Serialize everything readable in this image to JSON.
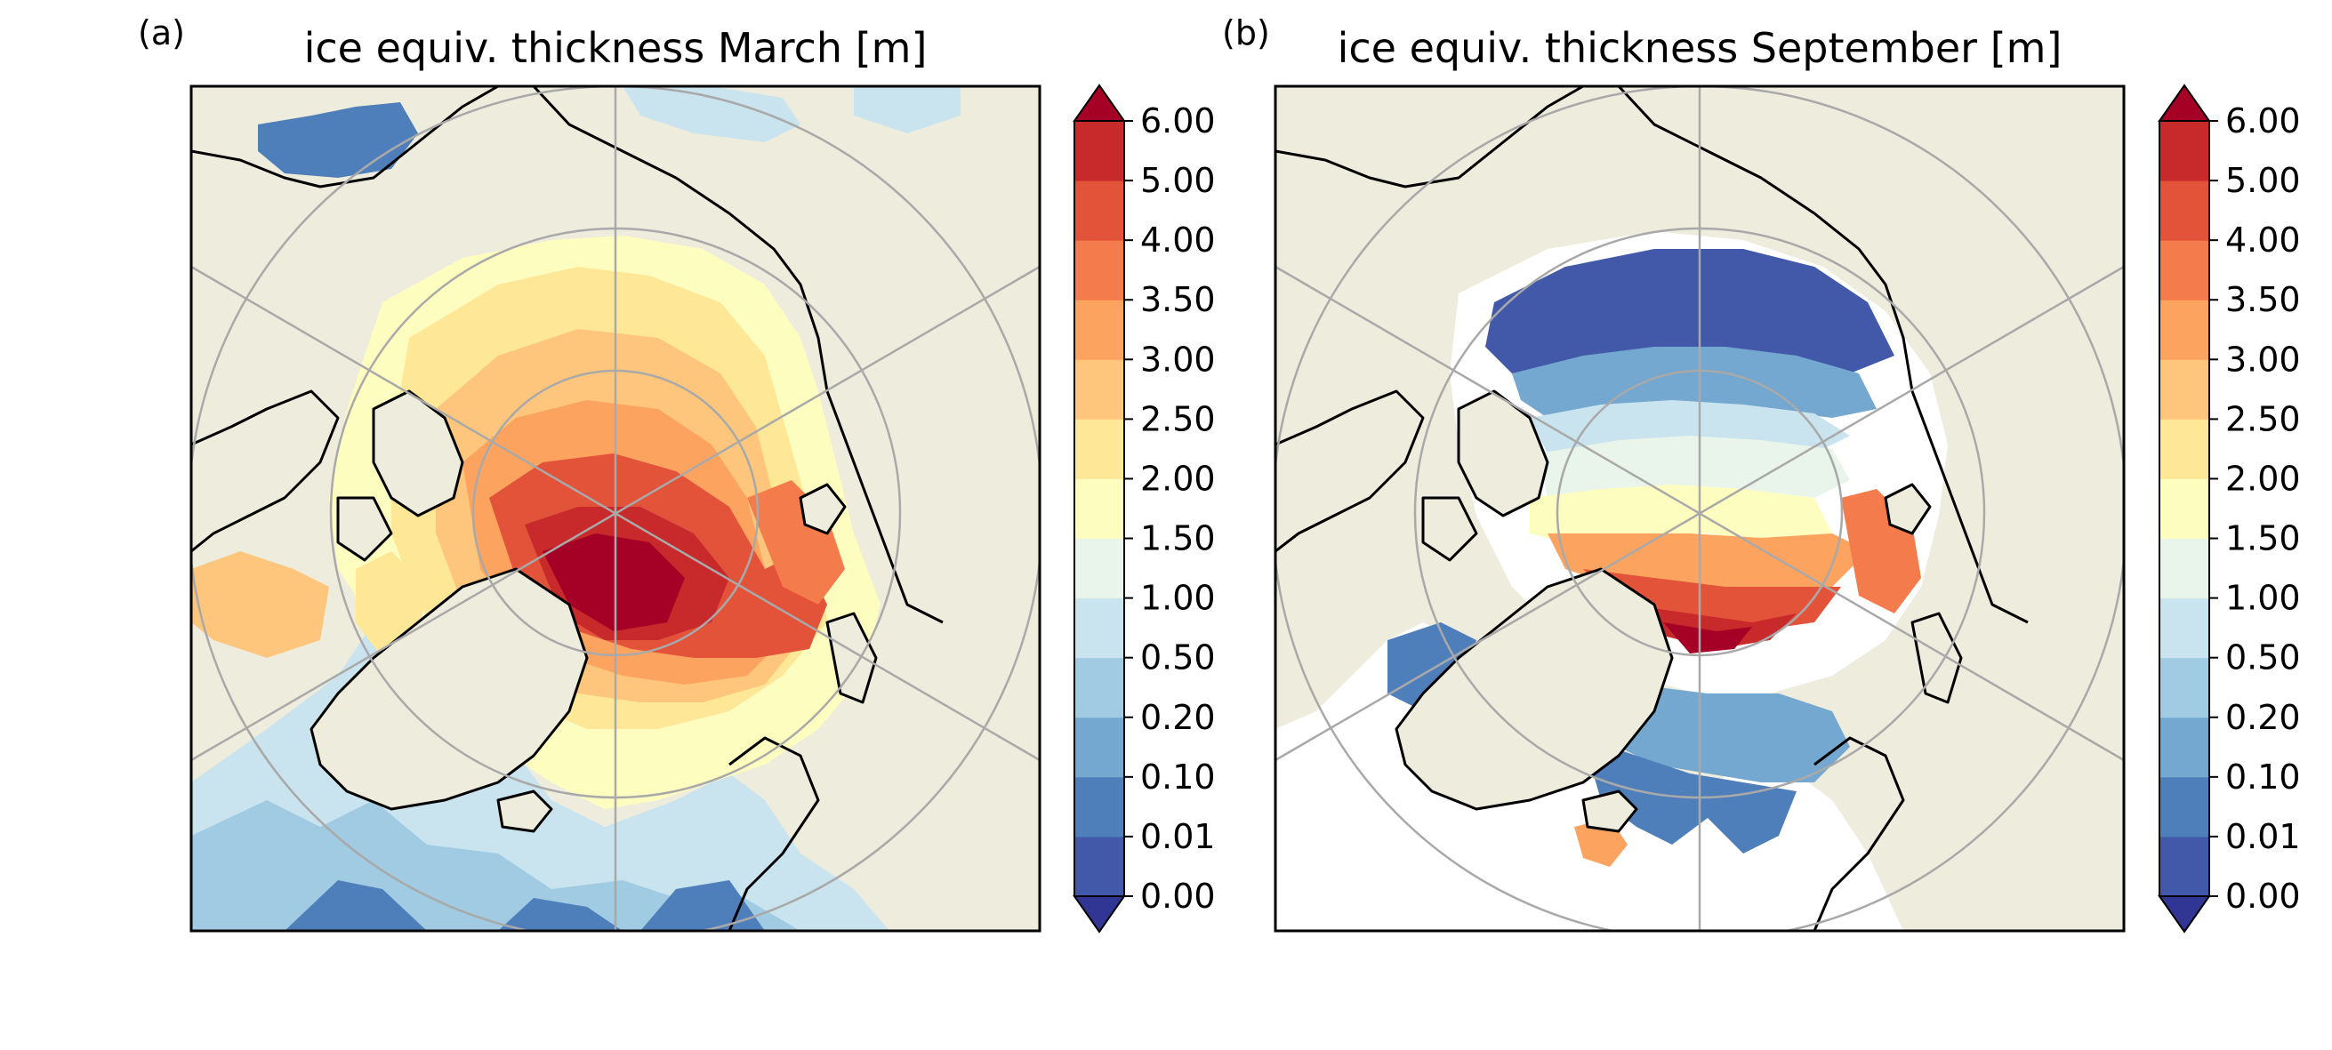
{
  "figure": {
    "panels": [
      {
        "id": "a",
        "label": "(a)",
        "title": "ice equiv. thickness March [m]",
        "month": "March"
      },
      {
        "id": "b",
        "label": "(b)",
        "title": "ice equiv. thickness September [m]",
        "month": "September"
      }
    ],
    "colorbar": {
      "levels": [
        "0.00",
        "0.01",
        "0.10",
        "0.20",
        "0.50",
        "1.00",
        "1.50",
        "2.00",
        "2.50",
        "3.00",
        "3.50",
        "4.00",
        "5.00",
        "6.00"
      ],
      "colors": [
        "#4159a8",
        "#4f7fbb",
        "#74a8d0",
        "#a0cbe2",
        "#c9e4ef",
        "#e9f4ea",
        "#fefdc0",
        "#fee898",
        "#fdc67c",
        "#fca35f",
        "#f47b4c",
        "#e3533a",
        "#c8292b"
      ],
      "under_color": "#313695",
      "over_color": "#a50026",
      "extend": "both",
      "colormap": "RdYlBu_r"
    },
    "map_style": {
      "projection": "north polar stereographic",
      "land_color": "#eeecdc",
      "ocean_color": "#ffffff",
      "coastline_color": "#000000",
      "gridline_color": "#a9a9a9"
    }
  }
}
